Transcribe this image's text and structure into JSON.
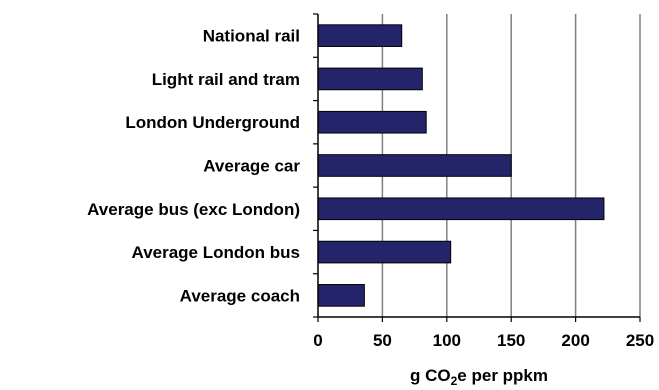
{
  "chart_data": {
    "type": "bar",
    "orientation": "horizontal",
    "categories": [
      "National rail",
      "Light rail and tram",
      "London Underground",
      "Average car",
      "Average bus (exc London)",
      "Average London bus",
      "Average coach"
    ],
    "values": [
      65,
      81,
      84,
      150,
      222,
      103,
      36
    ],
    "xlabel": {
      "before": "g CO",
      "subscript": "2",
      "after": "e per ppkm"
    },
    "xlim": [
      0,
      250
    ],
    "xticks": [
      0,
      50,
      100,
      150,
      200,
      250
    ],
    "grid": "vertical",
    "legend": "none",
    "colors": {
      "bar_fill": "#24246b",
      "bar_stroke": "#000000",
      "grid": "#808080",
      "axis": "#000000"
    }
  }
}
